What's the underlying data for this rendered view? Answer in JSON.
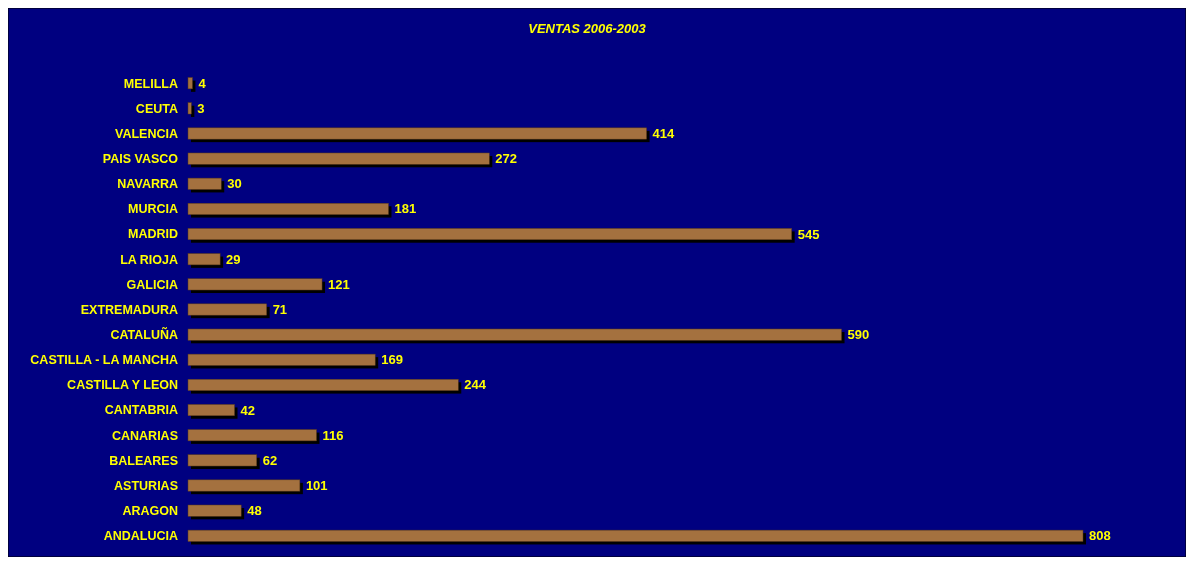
{
  "chart_data": {
    "type": "bar",
    "orientation": "horizontal",
    "title": "VENTAS 2006-2003",
    "categories": [
      "MELILLA",
      "CEUTA",
      "VALENCIA",
      "PAIS VASCO",
      "NAVARRA",
      "MURCIA",
      "MADRID",
      "LA RIOJA",
      "GALICIA",
      "EXTREMADURA",
      "CATALUÑA",
      "CASTILLA - LA MANCHA",
      "CASTILLA Y LEON",
      "CANTABRIA",
      "CANARIAS",
      "BALEARES",
      "ASTURIAS",
      "ARAGON",
      "ANDALUCIA"
    ],
    "values": [
      4,
      3,
      414,
      272,
      30,
      181,
      545,
      29,
      121,
      71,
      590,
      169,
      244,
      42,
      116,
      62,
      101,
      48,
      808
    ],
    "color": "#a4713f",
    "data_labels": true
  }
}
